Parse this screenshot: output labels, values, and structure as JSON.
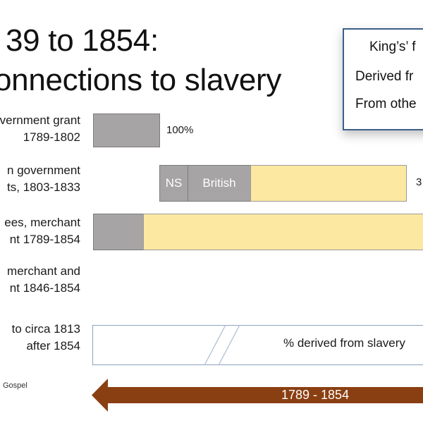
{
  "title": {
    "line1": "39 to 1854:",
    "line2": "onnections to slavery"
  },
  "legend": {
    "items": [
      {
        "label": "King’s’ f",
        "color": "#ffffff"
      },
      {
        "label": "Derived fr",
        "color": "#fde8a1"
      },
      {
        "label": "From othe",
        "color": "#a6a4a4"
      }
    ]
  },
  "chart_data": {
    "type": "bar",
    "orientation": "horizontal",
    "stacked": true,
    "rows": [
      {
        "label_lines": [
          "vernment grant",
          "1789-1802"
        ],
        "segments": [
          {
            "label": "",
            "color": "#a6a4a4",
            "value": null
          }
        ],
        "value_label": "100%"
      },
      {
        "label_lines": [
          "n government",
          "ts, 1803-1833"
        ],
        "segments": [
          {
            "label": "NS",
            "color": "#a6a4a4",
            "value": null
          },
          {
            "label": "British",
            "color": "#a6a4a4",
            "value": null
          },
          {
            "label": "",
            "color": "#fde8a1",
            "value": null
          }
        ],
        "value_label": "3"
      },
      {
        "label_lines": [
          "ees, merchant",
          "nt 1789-1854"
        ],
        "segments": [
          {
            "label": "",
            "color": "#a6a4a4",
            "value": null
          },
          {
            "label": "",
            "color": "#fde8a1",
            "value": null
          }
        ],
        "value_label": ""
      },
      {
        "label_lines": [
          "merchant and",
          "nt 1846-1854"
        ],
        "segments": [],
        "value_label": ""
      },
      {
        "label_lines": [
          "to circa 1813",
          "after 1854"
        ],
        "segments": [],
        "value_label": "% derived from slavery"
      }
    ],
    "period_arrow": "1789 - 1854",
    "footnote": "Gospel",
    "colors": {
      "gray": "#a6a4a4",
      "yellow": "#fde8a1",
      "arrow": "#8a3f12",
      "legend_border": "#3c5f8a"
    }
  }
}
